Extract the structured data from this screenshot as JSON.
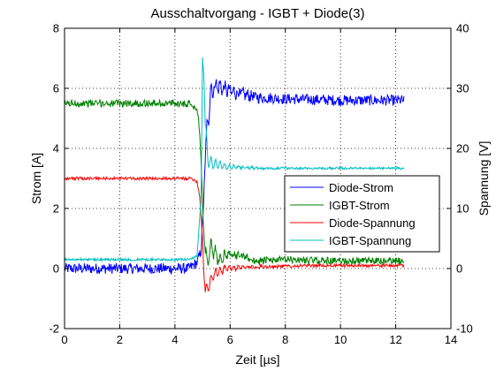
{
  "chart_data": {
    "type": "line",
    "title": "Ausschaltvorgang - IGBT + Diode(3)",
    "xlabel": "Zeit [µs]",
    "ylabel_left": "Strom [A]",
    "ylabel_right": "Spannung [V]",
    "xlim": [
      0,
      14
    ],
    "ylim_left": [
      -2,
      8
    ],
    "ylim_right": [
      -10,
      40
    ],
    "xticks": [
      0,
      2,
      4,
      6,
      8,
      10,
      12,
      14
    ],
    "yticks_left": [
      -2,
      0,
      2,
      4,
      6,
      8
    ],
    "yticks_right": [
      -10,
      0,
      10,
      20,
      30,
      40
    ],
    "grid": true,
    "legend_position": "center-right",
    "series": [
      {
        "name": "Diode-Strom",
        "axis": "left",
        "color": "#0000ff",
        "points": [
          [
            0,
            0.0
          ],
          [
            4.5,
            0.0
          ],
          [
            4.8,
            0.2
          ],
          [
            4.95,
            0.6
          ],
          [
            5.05,
            2.5
          ],
          [
            5.15,
            4.5
          ],
          [
            5.3,
            5.9
          ],
          [
            5.5,
            6.1
          ],
          [
            6.0,
            5.9
          ],
          [
            7.0,
            5.7
          ],
          [
            8.0,
            5.65
          ],
          [
            10.0,
            5.6
          ],
          [
            12.3,
            5.6
          ]
        ],
        "noise": 0.18
      },
      {
        "name": "IGBT-Strom",
        "axis": "left",
        "color": "#008000",
        "points": [
          [
            0,
            5.5
          ],
          [
            4.6,
            5.5
          ],
          [
            4.85,
            5.2
          ],
          [
            4.95,
            3.5
          ],
          [
            5.05,
            1.0
          ],
          [
            5.15,
            0.2
          ],
          [
            5.3,
            0.7
          ],
          [
            5.6,
            0.3
          ],
          [
            6.0,
            0.5
          ],
          [
            7.0,
            0.25
          ],
          [
            8.0,
            0.3
          ],
          [
            10.0,
            0.25
          ],
          [
            12.3,
            0.25
          ]
        ],
        "noise": 0.12
      },
      {
        "name": "Diode-Spannung",
        "axis": "right",
        "color": "#ff0000",
        "points": [
          [
            0,
            15.0
          ],
          [
            4.6,
            15.0
          ],
          [
            4.8,
            14.5
          ],
          [
            4.9,
            12.0
          ],
          [
            5.0,
            5.0
          ],
          [
            5.05,
            -1.0
          ],
          [
            5.1,
            -4.0
          ],
          [
            5.2,
            -3.0
          ],
          [
            5.4,
            -1.0
          ],
          [
            5.8,
            0.0
          ],
          [
            7.0,
            0.3
          ],
          [
            9.0,
            0.5
          ],
          [
            12.3,
            0.5
          ]
        ],
        "noise": 0.25
      },
      {
        "name": "IGBT-Spannung",
        "axis": "right",
        "color": "#00bfbf",
        "points": [
          [
            0,
            1.5
          ],
          [
            4.5,
            1.5
          ],
          [
            4.8,
            2.0
          ],
          [
            4.95,
            12.0
          ],
          [
            5.0,
            35.0
          ],
          [
            5.05,
            32.0
          ],
          [
            5.1,
            24.0
          ],
          [
            5.2,
            18.0
          ],
          [
            5.4,
            17.5
          ],
          [
            5.8,
            17.0
          ],
          [
            7.0,
            16.7
          ],
          [
            10.0,
            16.7
          ],
          [
            12.3,
            16.7
          ]
        ],
        "noise": 0.2
      }
    ]
  }
}
